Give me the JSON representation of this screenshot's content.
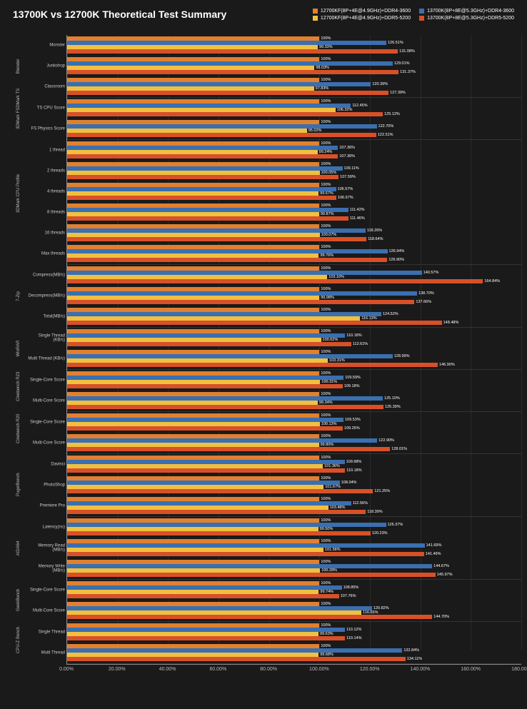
{
  "title": "13700K vs 12700K Theoretical Test Summary",
  "chart": {
    "type": "horizontal-grouped-bar",
    "background_color": "#1a1a1a",
    "text_color": "#ffffff",
    "grid_color": "#2a2a2a",
    "axis_color": "#888888",
    "x_min": 0,
    "x_max": 180,
    "x_step": 20,
    "x_format_suffix": "%",
    "x_ticks": [
      "0.00%",
      "20.00%",
      "40.00%",
      "60.00%",
      "80.00%",
      "100.00%",
      "120.00%",
      "140.00%",
      "160.00%",
      "180.00%"
    ],
    "series": [
      {
        "key": "s1",
        "label": "12700KF(8P+4E@4.9GHz)+DDR4-3600",
        "color": "#e08030"
      },
      {
        "key": "s2",
        "label": "13700K(8P+8E@5.3GHz)+DDR4-3600",
        "color": "#3a6fb0"
      },
      {
        "key": "s3",
        "label": "12700KF(8P+4E@4.9GHz)+DDR5-5200",
        "color": "#f0c040"
      },
      {
        "key": "s4",
        "label": "13700K(8P+8E@5.3GHz)+DDR5-5200",
        "color": "#d85028"
      }
    ],
    "title_fontsize": 14,
    "label_fontsize": 6,
    "value_fontsize": 5.5,
    "legend_fontsize": 7,
    "groups": [
      {
        "name": "Blender",
        "tests": [
          {
            "name": "Monster",
            "values": {
              "s1": 100,
              "s2": 126.51,
              "s3": 99.33,
              "s4": 131.08
            }
          },
          {
            "name": "Junkshop",
            "values": {
              "s1": 100,
              "s2": 129.01,
              "s3": 98.03,
              "s4": 131.37
            }
          },
          {
            "name": "Classroom",
            "values": {
              "s1": 100,
              "s2": 120.39,
              "s3": 97.83,
              "s4": 127.39
            }
          }
        ]
      },
      {
        "name": "3DMark FSDMark TS",
        "tests": [
          {
            "name": "TS CPU Score",
            "values": {
              "s1": 100,
              "s2": 112.45,
              "s3": 106.32,
              "s4": 125.12
            }
          },
          {
            "name": "FS Physics Score",
            "values": {
              "s1": 100,
              "s2": 122.7,
              "s3": 95.02,
              "s4": 122.51
            }
          }
        ]
      },
      {
        "name": "3DMark CPU Profile",
        "tests": [
          {
            "name": "1 thread",
            "values": {
              "s1": 100,
              "s2": 107.36,
              "s3": 99.24,
              "s4": 107.36
            }
          },
          {
            "name": "2 threads",
            "values": {
              "s1": 100,
              "s2": 109.11,
              "s3": 100.05,
              "s4": 107.59
            }
          },
          {
            "name": "4 threads",
            "values": {
              "s1": 100,
              "s2": 106.57,
              "s3": 99.67,
              "s4": 106.67
            }
          },
          {
            "name": "8 threads",
            "values": {
              "s1": 100,
              "s2": 111.42,
              "s3": 99.87,
              "s4": 111.46
            }
          },
          {
            "name": "16 threads",
            "values": {
              "s1": 100,
              "s2": 118.26,
              "s3": 100.07,
              "s4": 118.64
            }
          },
          {
            "name": "Max threads",
            "values": {
              "s1": 100,
              "s2": 126.94,
              "s3": 99.76,
              "s4": 126.9
            }
          }
        ]
      },
      {
        "name": "7-Zip",
        "tests": [
          {
            "name": "Compress(MB/s)",
            "values": {
              "s1": 100,
              "s2": 140.57,
              "s3": 103.1,
              "s4": 164.84
            }
          },
          {
            "name": "Decompress(MB/s)",
            "values": {
              "s1": 100,
              "s2": 138.7,
              "s3": 99.98,
              "s4": 137.66
            }
          },
          {
            "name": "Total(MB/s)",
            "values": {
              "s1": 100,
              "s2": 124.52,
              "s3": 116.13,
              "s4": 148.48
            }
          }
        ]
      },
      {
        "name": "WinRAR",
        "tests": [
          {
            "name": "Single Thread (KB/s)",
            "values": {
              "s1": 100,
              "s2": 110.18,
              "s3": 100.62,
              "s4": 112.61
            }
          },
          {
            "name": "Multi Thread (KB/s)",
            "values": {
              "s1": 100,
              "s2": 128.99,
              "s3": 103.31,
              "s4": 146.9
            }
          }
        ]
      },
      {
        "name": "Cinebench R23",
        "tests": [
          {
            "name": "Single-Core Score",
            "values": {
              "s1": 100,
              "s2": 109.59,
              "s3": 100.31,
              "s4": 109.18
            }
          },
          {
            "name": "Multi-Core Score",
            "values": {
              "s1": 100,
              "s2": 125.1,
              "s3": 99.34,
              "s4": 125.39
            }
          }
        ]
      },
      {
        "name": "Cinebench R20",
        "tests": [
          {
            "name": "Single-Core Score",
            "values": {
              "s1": 100,
              "s2": 109.53,
              "s3": 100.13,
              "s4": 109.26
            }
          },
          {
            "name": "Multi-Core Score",
            "values": {
              "s1": 100,
              "s2": 122.9,
              "s3": 99.8,
              "s4": 128.01
            }
          }
        ]
      },
      {
        "name": "PugetBench",
        "tests": [
          {
            "name": "Davinci",
            "values": {
              "s1": 100,
              "s2": 109.98,
              "s3": 101.36,
              "s4": 110.18
            }
          },
          {
            "name": "PhotoShop",
            "values": {
              "s1": 100,
              "s2": 108.04,
              "s3": 101.67,
              "s4": 121.25
            }
          },
          {
            "name": "Premiere Pro",
            "values": {
              "s1": 100,
              "s2": 112.56,
              "s3": 103.48,
              "s4": 118.39
            }
          }
        ]
      },
      {
        "name": "AIDA64",
        "tests": [
          {
            "name": "Latency(ns)",
            "values": {
              "s1": 100,
              "s2": 126.37,
              "s3": 99.5,
              "s4": 120.23
            }
          },
          {
            "name": "Memory Read (MB/s)",
            "values": {
              "s1": 100,
              "s2": 141.69,
              "s3": 101.58,
              "s4": 141.46
            }
          },
          {
            "name": "Memory Write (MB/s)",
            "values": {
              "s1": 100,
              "s2": 144.67,
              "s3": 100.28,
              "s4": 145.97
            }
          }
        ]
      },
      {
        "name": "GeekBench",
        "tests": [
          {
            "name": "Single-Core Score",
            "values": {
              "s1": 100,
              "s2": 108.85,
              "s3": 99.74,
              "s4": 107.76
            }
          },
          {
            "name": "Multi-Core Score",
            "values": {
              "s1": 100,
              "s2": 120.82,
              "s3": 116.65,
              "s4": 144.7
            }
          }
        ]
      },
      {
        "name": "CPU-Z Bench",
        "tests": [
          {
            "name": "Single Thread",
            "values": {
              "s1": 100,
              "s2": 110.12,
              "s3": 99.63,
              "s4": 110.14
            }
          },
          {
            "name": "Multi Thread",
            "values": {
              "s1": 100,
              "s2": 132.84,
              "s3": 99.68,
              "s4": 134.11
            }
          }
        ]
      }
    ]
  }
}
